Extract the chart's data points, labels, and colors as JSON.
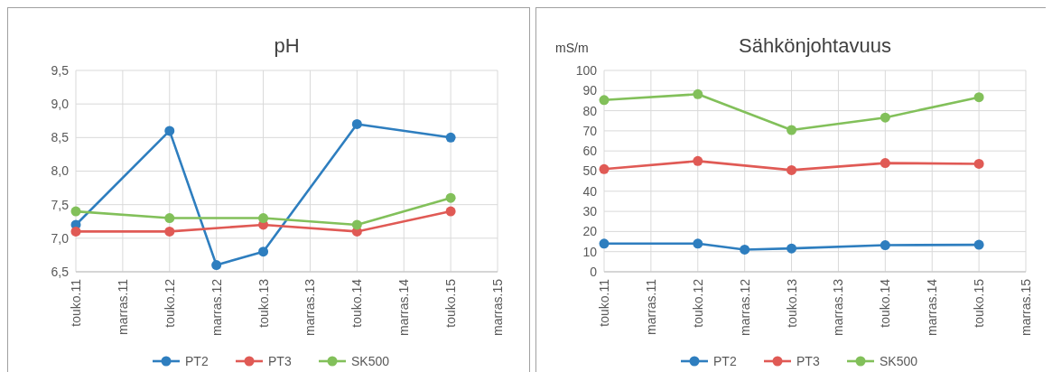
{
  "chart_data": [
    {
      "type": "line",
      "title": "pH",
      "categories": [
        "touko.11",
        "marras.11",
        "touko.12",
        "marras.12",
        "touko.13",
        "marras.13",
        "touko.14",
        "marras.14",
        "touko.15",
        "marras.15"
      ],
      "series": [
        {
          "name": "PT2",
          "color": "#2e7ebf",
          "values": [
            7.2,
            null,
            8.6,
            6.6,
            6.8,
            null,
            8.7,
            null,
            8.5,
            null
          ]
        },
        {
          "name": "PT3",
          "color": "#e05a55",
          "values": [
            7.1,
            null,
            7.1,
            null,
            7.2,
            null,
            7.1,
            null,
            7.4,
            null
          ]
        },
        {
          "name": "SK500",
          "color": "#82c05a",
          "values": [
            7.4,
            null,
            7.3,
            null,
            7.3,
            null,
            7.2,
            null,
            7.6,
            null
          ]
        }
      ],
      "ylim": [
        6.5,
        9.5
      ],
      "yticks": [
        {
          "value": 6.5,
          "label": "6,5"
        },
        {
          "value": 7,
          "label": "7,0"
        },
        {
          "value": 7.5,
          "label": "7,5"
        },
        {
          "value": 8,
          "label": "8,0"
        },
        {
          "value": 8.5,
          "label": "8,5"
        },
        {
          "value": 9,
          "label": "9,0"
        },
        {
          "value": 9.5,
          "label": "9,5"
        }
      ],
      "grid": true,
      "legend": "bottom",
      "marker": "circle",
      "line_style": "solid"
    },
    {
      "type": "line",
      "title": "Sähkönjohtavuus",
      "ylabel": "mS/m",
      "categories": [
        "touko.11",
        "marras.11",
        "touko.12",
        "marras.12",
        "touko.13",
        "marras.13",
        "touko.14",
        "marras.14",
        "touko.15",
        "marras.15"
      ],
      "series": [
        {
          "name": "PT2",
          "color": "#2e7ebf",
          "values": [
            14,
            null,
            14,
            11,
            11.6,
            null,
            13.2,
            null,
            13.4,
            null
          ]
        },
        {
          "name": "PT3",
          "color": "#e05a55",
          "values": [
            51,
            null,
            55,
            null,
            50.5,
            null,
            54,
            null,
            53.6,
            null
          ]
        },
        {
          "name": "SK500",
          "color": "#82c05a",
          "values": [
            85.3,
            null,
            88.2,
            null,
            70.4,
            null,
            76.6,
            null,
            86.7,
            null
          ]
        }
      ],
      "ylim": [
        0,
        100
      ],
      "yticks": [
        0,
        10,
        20,
        30,
        40,
        50,
        60,
        70,
        80,
        90,
        100
      ],
      "grid": true,
      "legend": "bottom",
      "marker": "circle",
      "line_style": "solid"
    }
  ]
}
